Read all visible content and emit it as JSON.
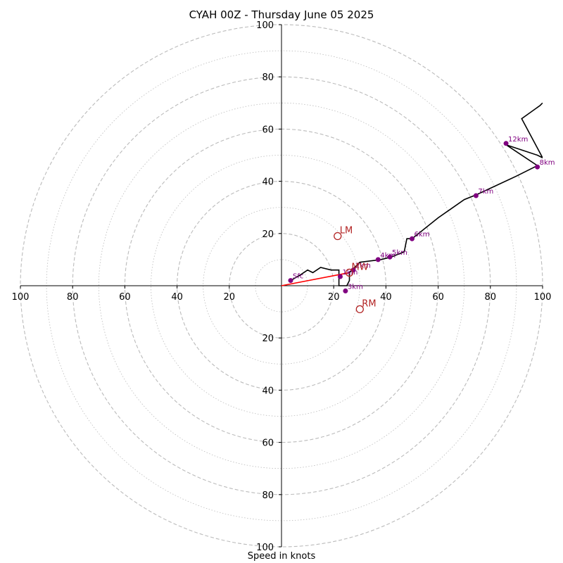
{
  "chart_data": {
    "type": "hodograph",
    "title": "CYAH 00Z - Thursday June 05 2025",
    "xlabel": "Speed in knots",
    "xlim": [
      -100,
      100
    ],
    "ylim": [
      -100,
      100
    ],
    "ring_step": 20,
    "minor_ring_step": 10,
    "tick_labels": [
      "100",
      "80",
      "60",
      "40",
      "20",
      "20",
      "40",
      "60",
      "80",
      "100"
    ],
    "yticks": [
      20,
      40,
      60,
      80,
      100
    ],
    "grid": true,
    "colors": {
      "trace": "#000000",
      "height_marker": "#800080",
      "storm_marker": "#b22222",
      "shear_vector": "#ff0000",
      "ring": "#bbbbbb"
    },
    "trace": {
      "u": [
        3.5,
        7,
        10,
        12,
        15,
        19,
        22,
        22,
        25,
        26,
        26,
        30,
        38,
        42,
        47,
        48,
        50,
        60,
        70,
        75,
        90,
        98,
        86,
        98,
        100,
        92,
        99,
        100
      ],
      "v": [
        2,
        4,
        6,
        5,
        7,
        6,
        6,
        0,
        0,
        2,
        5,
        9,
        10,
        11,
        13,
        18,
        18,
        26,
        33,
        35,
        42,
        46,
        54,
        50,
        49,
        64,
        69,
        70
      ]
    },
    "height_markers": [
      {
        "label": "Sfc",
        "u": 3.5,
        "v": 2
      },
      {
        "label": "3km",
        "u": 24.5,
        "v": -2
      },
      {
        "label": "1km",
        "u": 22.5,
        "v": 3.5
      },
      {
        "label": "2km",
        "u": 27.5,
        "v": 6
      },
      {
        "label": "4km",
        "u": 37,
        "v": 10
      },
      {
        "label": "5km",
        "u": 41.5,
        "v": 11
      },
      {
        "label": "6km",
        "u": 50,
        "v": 18
      },
      {
        "label": "7km",
        "u": 74.5,
        "v": 34.5
      },
      {
        "label": "8km",
        "u": 98,
        "v": 45.5
      },
      {
        "label": "12km",
        "u": 86,
        "v": 54.5
      }
    ],
    "storm_motions": [
      {
        "label": "LM",
        "u": 21.5,
        "v": 19
      },
      {
        "label": "MW",
        "u": 26,
        "v": 5
      },
      {
        "label": "RM",
        "u": 30,
        "v": -9
      }
    ],
    "shear_vector": {
      "u0": 0,
      "v0": 0,
      "u1": 26,
      "v1": 5
    }
  }
}
